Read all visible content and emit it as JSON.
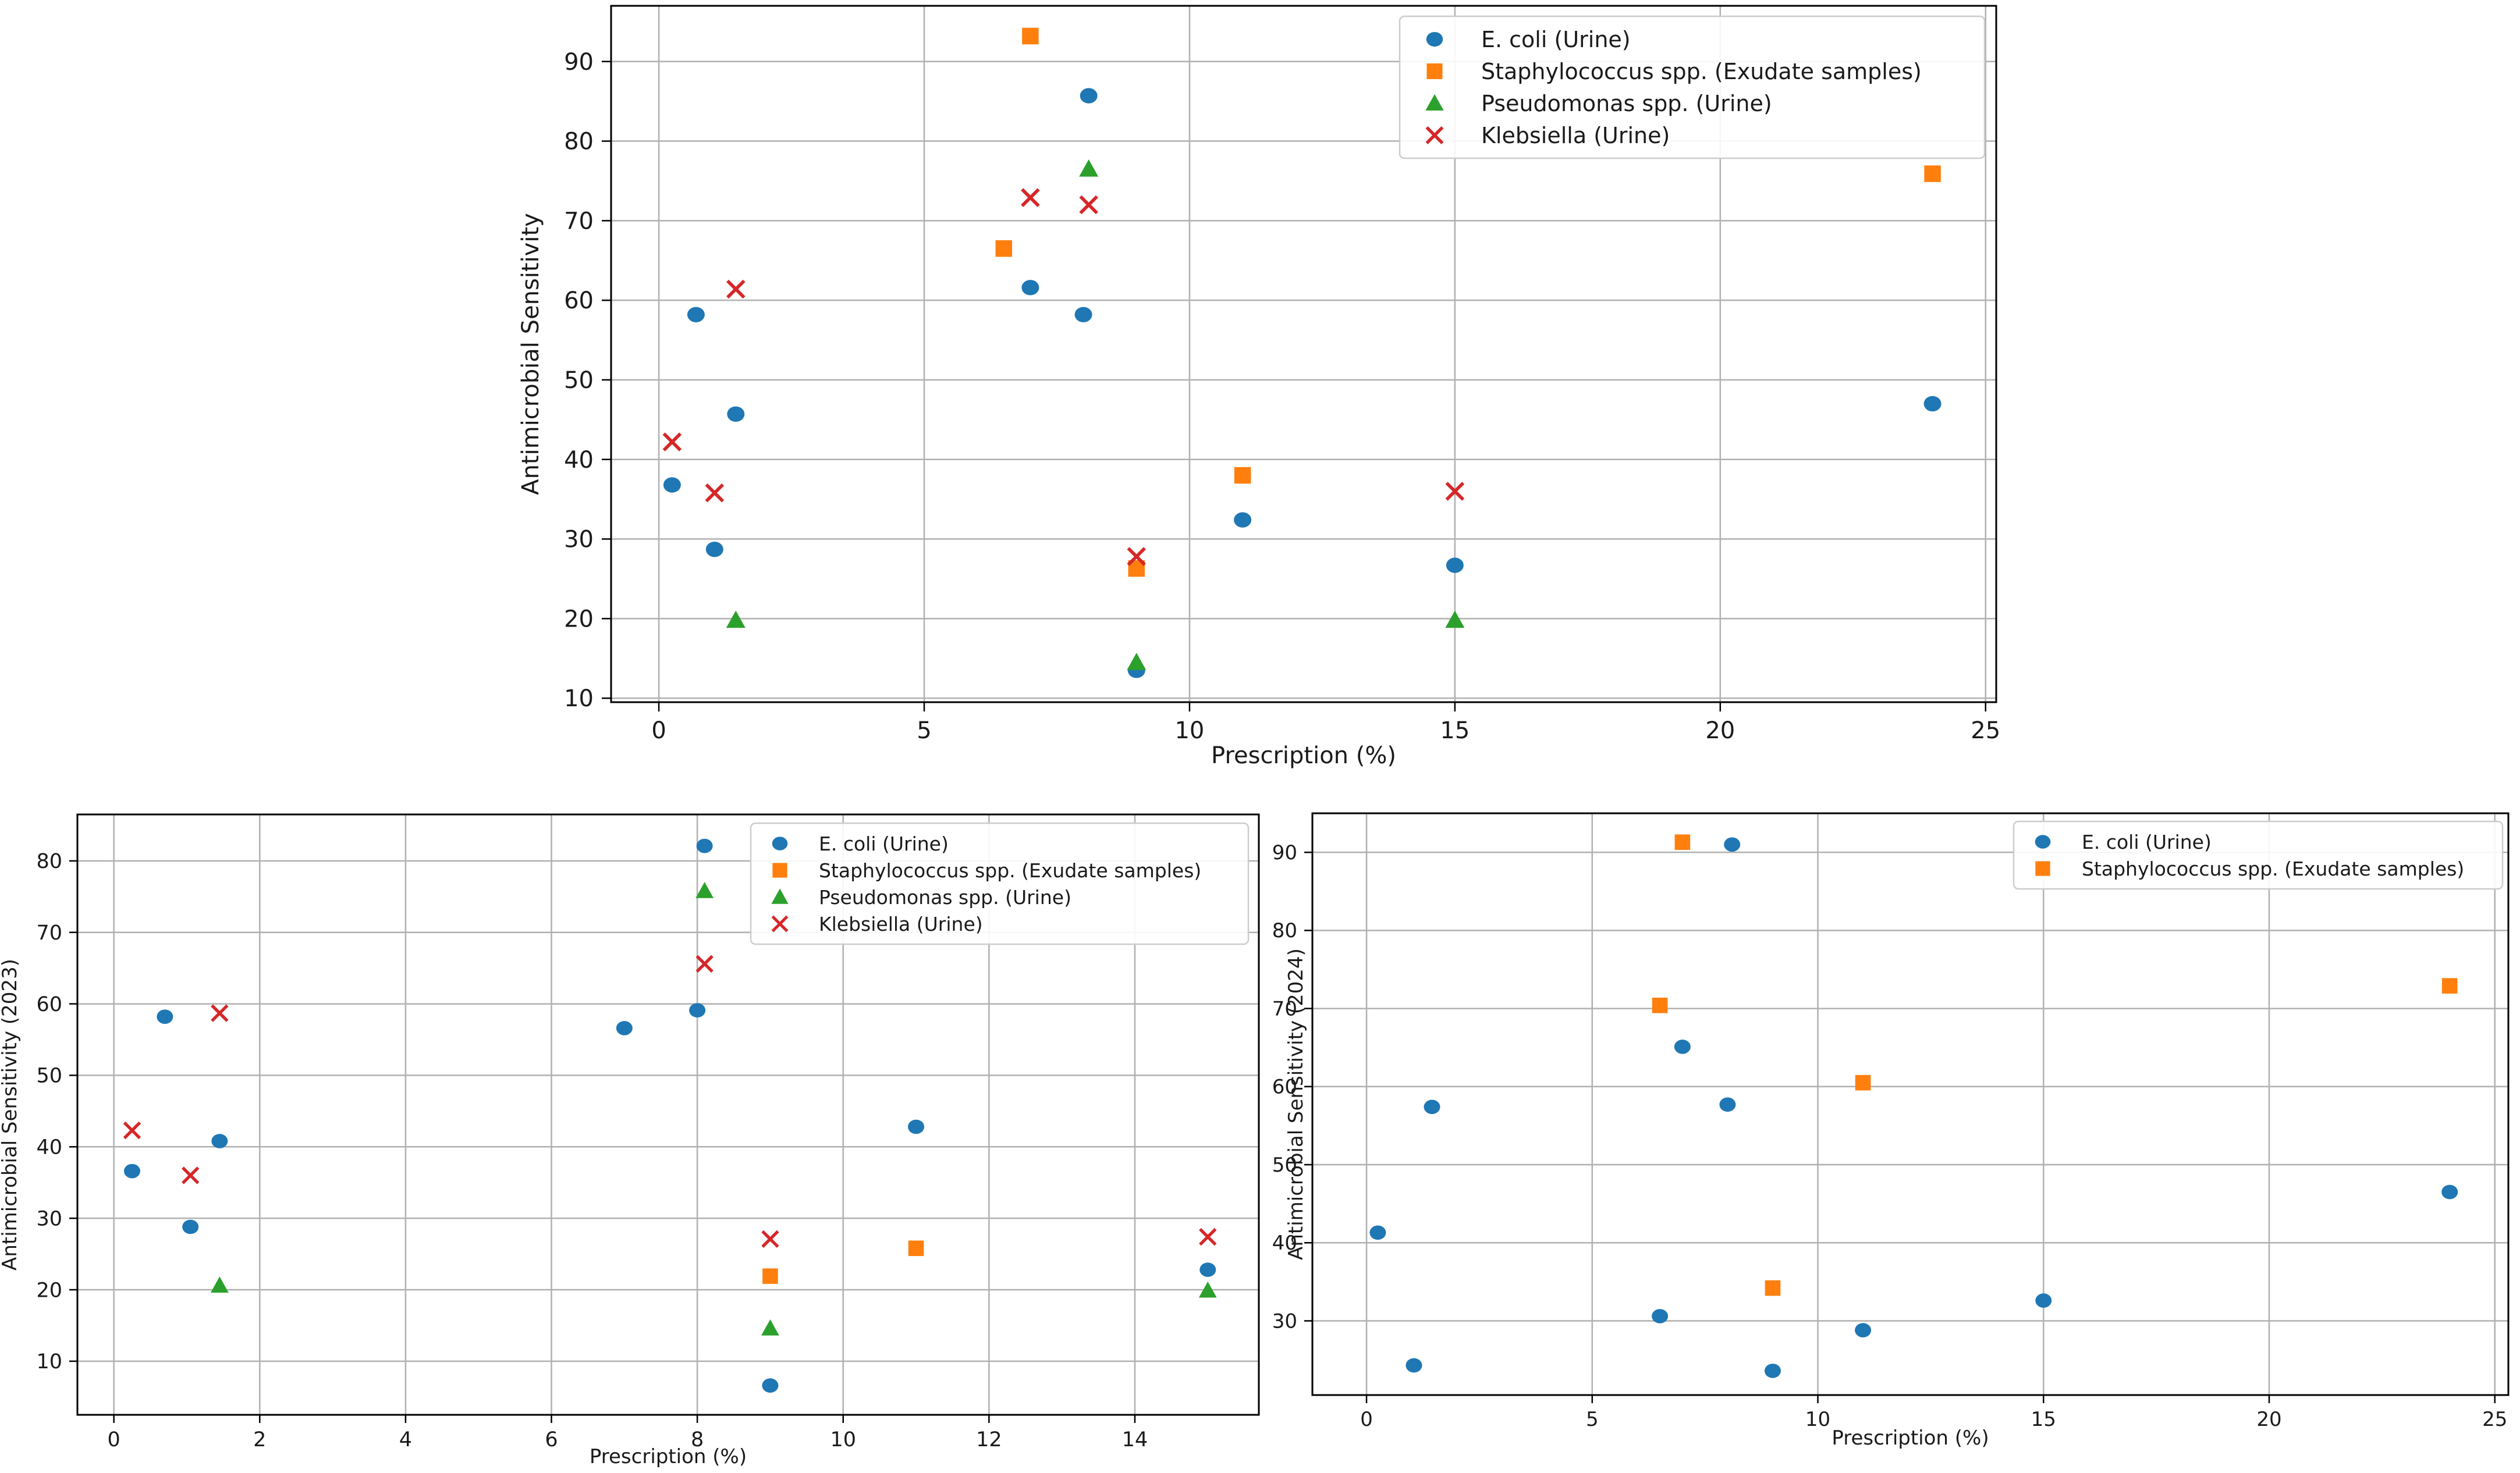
{
  "colors": {
    "E. coli (Urine)": "#1f77b4",
    "Staphylococcus spp. (Exudate samples)": "#ff7f0e",
    "Pseudomonas spp. (Urine)": "#2ca02c",
    "Klebsiella (Urine)": "#d62728"
  },
  "chart_data": [
    {
      "type": "scatter",
      "title": "",
      "xlabel": "Prescription (%)",
      "ylabel": "Antimicrobial Sensitivity",
      "xlim": [
        -0.9,
        25.2
      ],
      "ylim": [
        9.5,
        97
      ],
      "xticks": [
        0,
        5,
        10,
        15,
        20,
        25
      ],
      "yticks": [
        10,
        20,
        30,
        40,
        50,
        60,
        70,
        80,
        90
      ],
      "grid": true,
      "legend": "top-right",
      "series": [
        {
          "name": "E. coli (Urine)",
          "marker": "circle",
          "x": [
            0.25,
            0.7,
            1.05,
            1.45,
            7.0,
            8.0,
            8.1,
            9.0,
            11.0,
            15.0,
            24.0
          ],
          "y": [
            36.8,
            58.2,
            28.7,
            45.7,
            61.6,
            58.2,
            85.7,
            13.5,
            32.4,
            26.7,
            47.0
          ]
        },
        {
          "name": "Staphylococcus spp. (Exudate samples)",
          "marker": "square",
          "x": [
            6.5,
            7.0,
            9.0,
            11.0,
            24.0
          ],
          "y": [
            66.5,
            93.2,
            26.3,
            38.0,
            75.9
          ]
        },
        {
          "name": "Pseudomonas spp. (Urine)",
          "marker": "triangle",
          "x": [
            1.45,
            8.1,
            9.0,
            15.0
          ],
          "y": [
            19.8,
            76.5,
            14.5,
            19.8
          ]
        },
        {
          "name": "Klebsiella (Urine)",
          "marker": "x",
          "x": [
            0.25,
            1.05,
            1.45,
            7.0,
            8.1,
            9.0,
            15.0
          ],
          "y": [
            42.2,
            35.8,
            61.4,
            72.9,
            72.0,
            27.8,
            36.0
          ]
        }
      ]
    },
    {
      "type": "scatter",
      "title": "",
      "xlabel": "Prescription (%)",
      "ylabel": "Antimicrobial Sensitivity (2023)",
      "xlim": [
        -0.5,
        15.7
      ],
      "ylim": [
        2.5,
        86.5
      ],
      "xticks": [
        0,
        2,
        4,
        6,
        8,
        10,
        12,
        14
      ],
      "yticks": [
        10,
        20,
        30,
        40,
        50,
        60,
        70,
        80
      ],
      "grid": true,
      "legend": "top-right",
      "series": [
        {
          "name": "E. coli (Urine)",
          "marker": "circle",
          "x": [
            0.25,
            0.7,
            1.05,
            1.45,
            7.0,
            8.0,
            8.1,
            9.0,
            11.0,
            15.0
          ],
          "y": [
            36.6,
            58.2,
            28.8,
            40.8,
            56.6,
            59.1,
            82.1,
            6.6,
            42.8,
            22.8
          ]
        },
        {
          "name": "Staphylococcus spp. (Exudate samples)",
          "marker": "square",
          "x": [
            9.0,
            11.0
          ],
          "y": [
            21.9,
            25.8
          ]
        },
        {
          "name": "Pseudomonas spp. (Urine)",
          "marker": "triangle",
          "x": [
            1.45,
            8.1,
            9.0,
            15.0
          ],
          "y": [
            20.6,
            75.8,
            14.6,
            19.9
          ]
        },
        {
          "name": "Klebsiella (Urine)",
          "marker": "x",
          "x": [
            0.25,
            1.05,
            1.45,
            8.1,
            9.0,
            15.0
          ],
          "y": [
            42.3,
            36.0,
            58.7,
            65.6,
            27.1,
            27.4
          ]
        }
      ]
    },
    {
      "type": "scatter",
      "title": "",
      "xlabel": "Prescription (%)",
      "ylabel": "Antimicrobial Sensitivity (2024)",
      "xlim": [
        -1.2,
        25.3
      ],
      "ylim": [
        20.5,
        95
      ],
      "xticks": [
        0,
        5,
        10,
        15,
        20,
        25
      ],
      "yticks": [
        30,
        40,
        50,
        60,
        70,
        80,
        90
      ],
      "grid": true,
      "legend": "top-right",
      "series": [
        {
          "name": "E. coli (Urine)",
          "marker": "circle",
          "x": [
            0.25,
            1.05,
            1.45,
            6.5,
            7.0,
            8.0,
            8.1,
            9.0,
            11.0,
            15.0,
            24.0
          ],
          "y": [
            41.3,
            24.3,
            57.4,
            30.6,
            65.1,
            57.7,
            91.0,
            23.6,
            28.8,
            32.6,
            46.5
          ]
        },
        {
          "name": "Staphylococcus spp. (Exudate samples)",
          "marker": "square",
          "x": [
            6.5,
            7.0,
            9.0,
            11.0,
            24.0
          ],
          "y": [
            70.4,
            91.3,
            34.2,
            60.5,
            72.9
          ]
        }
      ]
    }
  ]
}
